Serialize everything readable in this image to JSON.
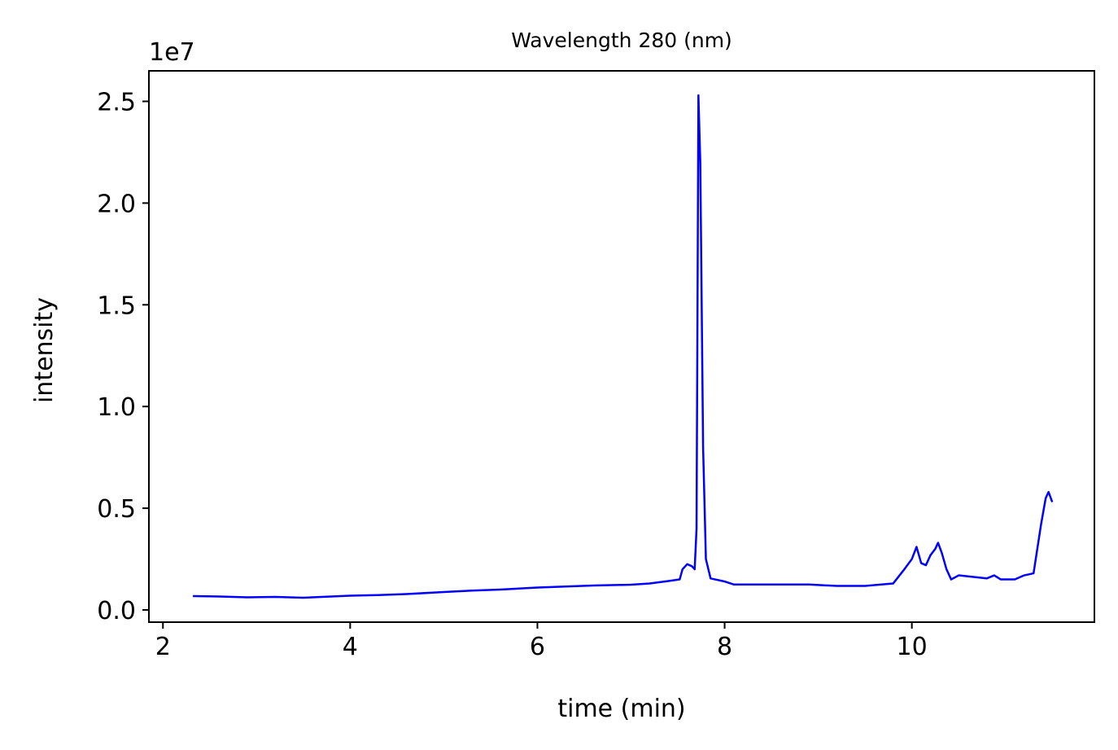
{
  "chart_data": {
    "type": "line",
    "title": "Wavelength 280 (nm)",
    "xlabel": "time (min)",
    "ylabel": "intensity",
    "y_offset_label": "1e7",
    "xlim": [
      1.85,
      11.95
    ],
    "ylim": [
      -0.06,
      2.65
    ],
    "y_scale_note": "values in units of 1e7",
    "xticks": [
      {
        "value": 2,
        "label": "2"
      },
      {
        "value": 4,
        "label": "4"
      },
      {
        "value": 6,
        "label": "6"
      },
      {
        "value": 8,
        "label": "8"
      },
      {
        "value": 10,
        "label": "10"
      }
    ],
    "yticks": [
      {
        "value": 0.0,
        "label": "0.0"
      },
      {
        "value": 0.5,
        "label": "0.5"
      },
      {
        "value": 1.0,
        "label": "1.0"
      },
      {
        "value": 1.5,
        "label": "1.5"
      },
      {
        "value": 2.0,
        "label": "2.0"
      },
      {
        "value": 2.5,
        "label": "2.5"
      }
    ],
    "grid": false,
    "legend": "none",
    "series": [
      {
        "color": "#0000ff",
        "points": [
          [
            2.32,
            0.068
          ],
          [
            2.6,
            0.066
          ],
          [
            2.9,
            0.062
          ],
          [
            3.2,
            0.064
          ],
          [
            3.5,
            0.06
          ],
          [
            3.8,
            0.066
          ],
          [
            4.0,
            0.07
          ],
          [
            4.3,
            0.073
          ],
          [
            4.6,
            0.078
          ],
          [
            5.0,
            0.088
          ],
          [
            5.3,
            0.095
          ],
          [
            5.6,
            0.1
          ],
          [
            6.0,
            0.11
          ],
          [
            6.3,
            0.115
          ],
          [
            6.6,
            0.12
          ],
          [
            7.0,
            0.124
          ],
          [
            7.2,
            0.13
          ],
          [
            7.4,
            0.142
          ],
          [
            7.52,
            0.15
          ],
          [
            7.55,
            0.2
          ],
          [
            7.6,
            0.225
          ],
          [
            7.65,
            0.215
          ],
          [
            7.68,
            0.2
          ],
          [
            7.7,
            0.4
          ],
          [
            7.72,
            2.53
          ],
          [
            7.74,
            2.2
          ],
          [
            7.77,
            0.8
          ],
          [
            7.8,
            0.25
          ],
          [
            7.85,
            0.155
          ],
          [
            8.0,
            0.14
          ],
          [
            8.1,
            0.125
          ],
          [
            8.3,
            0.125
          ],
          [
            8.6,
            0.125
          ],
          [
            8.9,
            0.125
          ],
          [
            9.2,
            0.118
          ],
          [
            9.5,
            0.118
          ],
          [
            9.8,
            0.13
          ],
          [
            9.92,
            0.2
          ],
          [
            10.0,
            0.25
          ],
          [
            10.05,
            0.31
          ],
          [
            10.1,
            0.23
          ],
          [
            10.15,
            0.22
          ],
          [
            10.2,
            0.27
          ],
          [
            10.25,
            0.3
          ],
          [
            10.28,
            0.33
          ],
          [
            10.32,
            0.28
          ],
          [
            10.37,
            0.2
          ],
          [
            10.42,
            0.15
          ],
          [
            10.5,
            0.17
          ],
          [
            10.7,
            0.16
          ],
          [
            10.8,
            0.155
          ],
          [
            10.88,
            0.17
          ],
          [
            10.95,
            0.15
          ],
          [
            11.1,
            0.15
          ],
          [
            11.2,
            0.17
          ],
          [
            11.3,
            0.18
          ],
          [
            11.38,
            0.42
          ],
          [
            11.43,
            0.55
          ],
          [
            11.46,
            0.58
          ],
          [
            11.5,
            0.53
          ]
        ]
      }
    ]
  }
}
